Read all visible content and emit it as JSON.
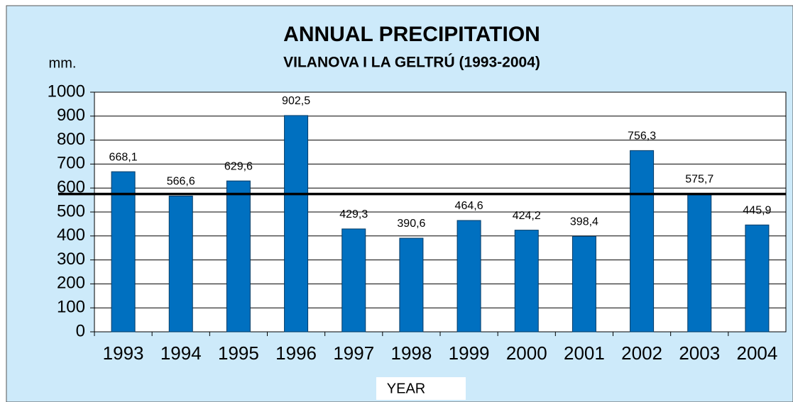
{
  "chart_data": {
    "type": "bar",
    "title": "ANNUAL PRECIPITATION",
    "subtitle": "VILANOVA I LA GELTRÚ (1993-2004)",
    "y_axis_label": "mm.",
    "x_axis_label": "YEAR",
    "categories": [
      "1993",
      "1994",
      "1995",
      "1996",
      "1997",
      "1998",
      "1999",
      "2000",
      "2001",
      "2002",
      "2003",
      "2004"
    ],
    "values": [
      668.1,
      566.6,
      629.6,
      902.5,
      429.3,
      390.6,
      464.6,
      424.2,
      398.4,
      756.3,
      575.7,
      445.9
    ],
    "value_labels": [
      "668,1",
      "566,6",
      "629,6",
      "902,5",
      "429,3",
      "390,6",
      "464,6",
      "424,2",
      "398,4",
      "756,3",
      "575,7",
      "445,9"
    ],
    "color": "#0070c0",
    "reference_line": {
      "value": 575
    },
    "ylim": [
      0,
      1000
    ],
    "yticks": [
      0,
      100,
      200,
      300,
      400,
      500,
      600,
      700,
      800,
      900,
      1000
    ],
    "grid": true
  }
}
